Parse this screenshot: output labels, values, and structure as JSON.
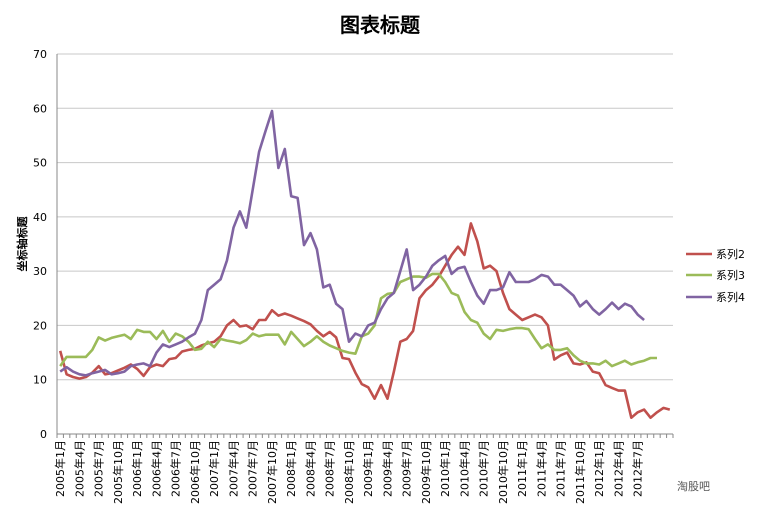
{
  "chart_data": {
    "type": "line",
    "title": "图表标题",
    "xlabel": "",
    "ylabel": "坐标轴标题",
    "ylim": [
      0,
      70
    ],
    "yticks": [
      0,
      10,
      20,
      30,
      40,
      50,
      60,
      70
    ],
    "grid": "horizontal",
    "legend": "right",
    "x_start": "2005-01",
    "x_step_months": 1,
    "x_tick_labels": [
      "2005年1月",
      "2005年4月",
      "2005年7月",
      "2005年10月",
      "2006年1月",
      "2006年4月",
      "2006年7月",
      "2006年10月",
      "2007年1月",
      "2007年4月",
      "2007年7月",
      "2007年10月",
      "2008年1月",
      "2008年4月",
      "2008年7月",
      "2008年10月",
      "2009年1月",
      "2009年4月",
      "2009年7月",
      "2009年10月",
      "2010年1月",
      "2010年4月",
      "2010年7月",
      "2010年10月",
      "2011年1月",
      "2011年4月",
      "2011年7月",
      "2011年10月",
      "2012年1月",
      "2012年4月",
      "2012年7月"
    ],
    "series": [
      {
        "name": "系列2",
        "color": "#c0504d",
        "values": [
          15.3,
          11.0,
          10.5,
          10.2,
          10.5,
          11.3,
          12.5,
          11.0,
          11.2,
          11.7,
          12.2,
          12.8,
          12.0,
          10.7,
          12.3,
          12.8,
          12.5,
          13.8,
          14.0,
          15.2,
          15.5,
          15.7,
          16.3,
          16.7,
          17.0,
          18.0,
          20.0,
          21.0,
          19.8,
          20.0,
          19.3,
          21.0,
          21.0,
          22.8,
          21.8,
          22.2,
          21.8,
          21.3,
          20.8,
          20.2,
          19.0,
          18.0,
          18.8,
          17.8,
          14.0,
          13.8,
          11.3,
          9.2,
          8.6,
          6.5,
          9.0,
          6.5,
          11.5,
          17.0,
          17.5,
          19.0,
          25.0,
          26.5,
          27.5,
          29.0,
          31.0,
          33.0,
          34.5,
          33.0,
          38.8,
          35.5,
          30.5,
          31.0,
          30.0,
          26.0,
          23.0,
          22.0,
          21.0,
          21.5,
          22.0,
          21.5,
          20.0,
          13.7,
          14.5,
          15.0,
          13.0,
          12.8,
          13.2,
          11.5,
          11.2,
          9.0,
          8.5,
          8.0,
          8.0,
          3.0,
          4.0,
          4.5,
          3.0,
          4.0,
          4.8,
          4.5
        ]
      },
      {
        "name": "系列3",
        "color": "#9bbb59",
        "values": [
          12.5,
          14.2,
          14.2,
          14.2,
          14.2,
          15.5,
          17.8,
          17.2,
          17.7,
          18.0,
          18.3,
          17.5,
          19.2,
          18.8,
          18.8,
          17.5,
          19.0,
          17.0,
          18.5,
          18.0,
          17.0,
          15.5,
          15.7,
          17.0,
          16.0,
          17.5,
          17.2,
          17.0,
          16.7,
          17.3,
          18.5,
          18.0,
          18.3,
          18.3,
          18.3,
          16.5,
          18.8,
          17.5,
          16.2,
          17.0,
          18.0,
          17.0,
          16.3,
          15.8,
          15.3,
          15.0,
          14.8,
          18.0,
          18.5,
          20.0,
          25.0,
          25.8,
          26.0,
          28.0,
          28.5,
          29.0,
          29.0,
          28.8,
          29.5,
          29.5,
          28.0,
          26.0,
          25.5,
          22.5,
          21.0,
          20.5,
          18.5,
          17.5,
          19.2,
          19.0,
          19.3,
          19.5,
          19.5,
          19.3,
          17.5,
          15.8,
          16.5,
          15.5,
          15.5,
          15.8,
          14.5,
          13.5,
          13.0,
          13.0,
          12.8,
          13.5,
          12.5,
          13.0,
          13.5,
          12.8,
          13.2,
          13.5,
          14.0,
          14.0
        ]
      },
      {
        "name": "系列4",
        "color": "#8064a2",
        "values": [
          11.5,
          12.3,
          11.5,
          11.0,
          10.8,
          11.2,
          11.5,
          11.8,
          11.0,
          11.2,
          11.5,
          12.5,
          12.8,
          13.0,
          12.5,
          15.0,
          16.5,
          16.0,
          16.5,
          17.0,
          17.8,
          18.5,
          21.0,
          26.5,
          27.5,
          28.5,
          32.0,
          38.0,
          41.0,
          38.0,
          45.0,
          52.0,
          55.8,
          59.5,
          49.0,
          52.5,
          43.8,
          43.5,
          34.8,
          37.0,
          34.0,
          27.0,
          27.5,
          24.0,
          23.0,
          17.0,
          18.5,
          18.0,
          20.0,
          20.5,
          23.0,
          25.0,
          26.0,
          30.0,
          34.0,
          26.5,
          27.5,
          29.0,
          31.0,
          32.0,
          32.8,
          29.5,
          30.5,
          30.8,
          28.0,
          25.5,
          24.0,
          26.5,
          26.5,
          27.0,
          29.8,
          28.0,
          28.0,
          28.0,
          28.5,
          29.3,
          29.0,
          27.5,
          27.5,
          26.5,
          25.5,
          23.5,
          24.5,
          23.0,
          22.0,
          23.0,
          24.2,
          23.0,
          24.0,
          23.5,
          22.0,
          21.0
        ]
      }
    ]
  },
  "watermark": "淘股吧"
}
